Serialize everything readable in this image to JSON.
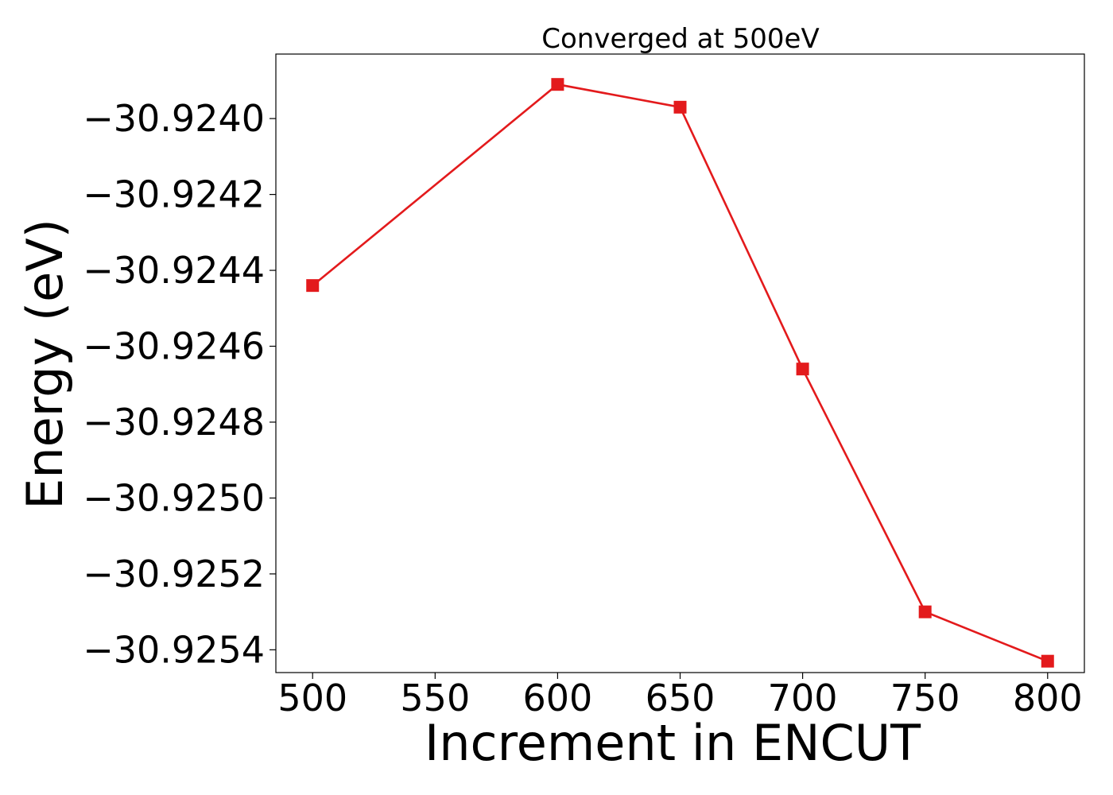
{
  "chart_data": {
    "type": "line",
    "title": "Converged at 500eV",
    "xlabel": "Increment in ENCUT",
    "ylabel": "Energy (eV)",
    "xlim": [
      485,
      815
    ],
    "ylim": [
      -30.92546,
      -30.92383
    ],
    "xticks": [
      500,
      550,
      600,
      650,
      700,
      750,
      800
    ],
    "xtick_labels": [
      "500",
      "550",
      "600",
      "650",
      "700",
      "750",
      "800"
    ],
    "yticks": [
      -30.924,
      -30.9242,
      -30.9244,
      -30.9246,
      -30.9248,
      -30.925,
      -30.9252,
      -30.9254
    ],
    "ytick_labels": [
      "−30.9240",
      "−30.9242",
      "−30.9244",
      "−30.9246",
      "−30.9248",
      "−30.9250",
      "−30.9252",
      "−30.9254"
    ],
    "grid": false,
    "series": [
      {
        "color": "#e31a1c",
        "marker": "square",
        "x": [
          500,
          600,
          650,
          700,
          750,
          800
        ],
        "y": [
          -30.92444,
          -30.92391,
          -30.92397,
          -30.92466,
          -30.9253,
          -30.92543
        ]
      }
    ]
  }
}
